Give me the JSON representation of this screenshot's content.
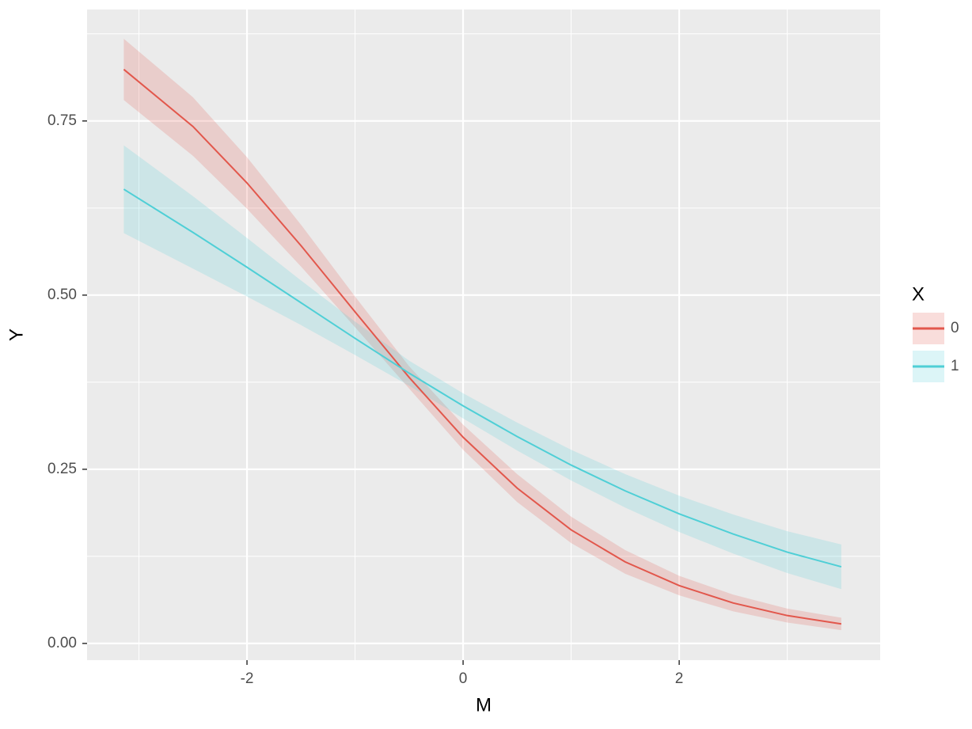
{
  "chart_data": {
    "type": "line",
    "x_label": "M",
    "y_label": "Y",
    "legend_title": "X",
    "xlim": [
      -3.48,
      3.86
    ],
    "ylim": [
      -0.024,
      0.91
    ],
    "xticks": [
      -2,
      0,
      2
    ],
    "yticks": [
      {
        "value": 0,
        "label": "0.00"
      },
      {
        "value": 0.25,
        "label": "0.25"
      },
      {
        "value": 0.5,
        "label": "0.50"
      },
      {
        "value": 0.75,
        "label": "0.75"
      }
    ],
    "xminor": [
      -3,
      -1,
      1,
      3
    ],
    "yminor": [
      0.125,
      0.375,
      0.625,
      0.875
    ],
    "grid": true,
    "x": [
      -3.14,
      -2.5,
      -2,
      -1.5,
      -1,
      -0.5,
      0,
      0.5,
      1,
      1.5,
      2,
      2.5,
      3,
      3.5
    ],
    "series": [
      {
        "name": "0",
        "color": "#E2574C",
        "values": [
          0.824,
          0.742,
          0.661,
          0.571,
          0.476,
          0.382,
          0.296,
          0.223,
          0.163,
          0.117,
          0.083,
          0.058,
          0.04,
          0.028
        ],
        "lower": [
          0.78,
          0.7,
          0.624,
          0.541,
          0.454,
          0.366,
          0.278,
          0.203,
          0.144,
          0.1,
          0.069,
          0.046,
          0.03,
          0.019
        ],
        "upper": [
          0.868,
          0.784,
          0.698,
          0.601,
          0.498,
          0.398,
          0.314,
          0.243,
          0.182,
          0.134,
          0.097,
          0.07,
          0.05,
          0.037
        ]
      },
      {
        "name": "1",
        "color": "#4FCFD6",
        "values": [
          0.652,
          0.59,
          0.54,
          0.489,
          0.438,
          0.388,
          0.341,
          0.297,
          0.256,
          0.219,
          0.186,
          0.157,
          0.131,
          0.11
        ],
        "lower": [
          0.589,
          0.538,
          0.498,
          0.457,
          0.414,
          0.37,
          0.323,
          0.277,
          0.234,
          0.195,
          0.16,
          0.129,
          0.101,
          0.078
        ],
        "upper": [
          0.715,
          0.642,
          0.582,
          0.521,
          0.462,
          0.406,
          0.359,
          0.317,
          0.278,
          0.243,
          0.212,
          0.185,
          0.161,
          0.142
        ]
      }
    ]
  }
}
